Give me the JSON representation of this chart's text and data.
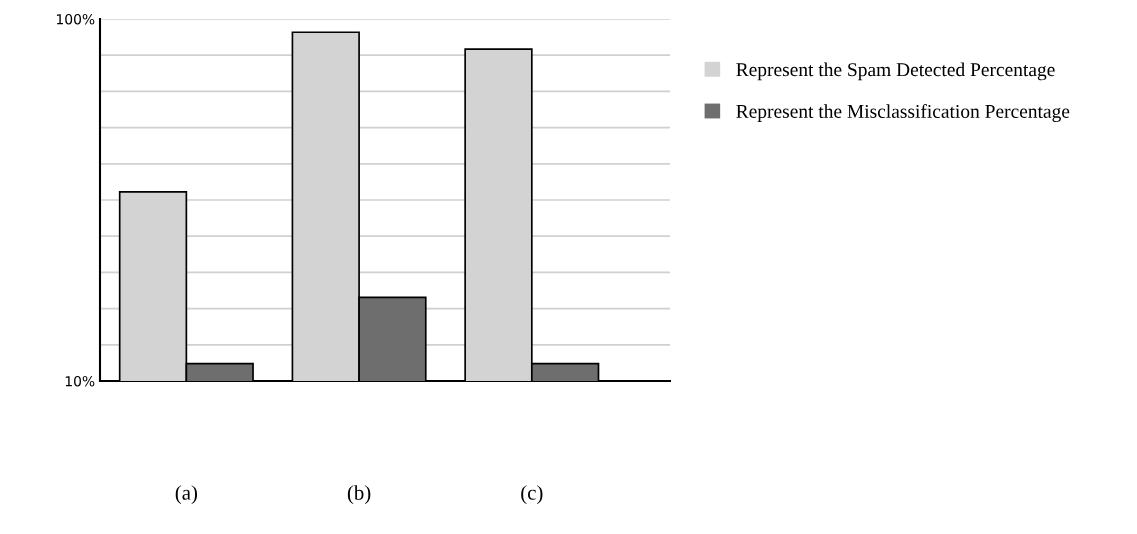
{
  "chart_data": {
    "type": "bar",
    "categories": [
      "(a)",
      "(b)",
      "(c)"
    ],
    "series": [
      {
        "name": "Represent the Spam Detected Percentage",
        "color": "#d3d3d3",
        "values": [
          57,
          96.7,
          92.5
        ]
      },
      {
        "name": "Represent the Misclassification Percentage",
        "color": "#6e6e6e",
        "values": [
          14.3,
          30.8,
          14.3
        ]
      }
    ],
    "ylim": [
      10,
      100
    ],
    "yticks": [
      {
        "value": 10,
        "label": "10%"
      },
      {
        "value": 19,
        "label": null
      },
      {
        "value": 28,
        "label": null
      },
      {
        "value": 37,
        "label": null
      },
      {
        "value": 46,
        "label": null
      },
      {
        "value": 55,
        "label": null
      },
      {
        "value": 64,
        "label": null
      },
      {
        "value": 73,
        "label": null
      },
      {
        "value": 82,
        "label": null
      },
      {
        "value": 91,
        "label": null
      },
      {
        "value": 100,
        "label": "100%"
      }
    ],
    "grid": "y",
    "legend": "right"
  }
}
